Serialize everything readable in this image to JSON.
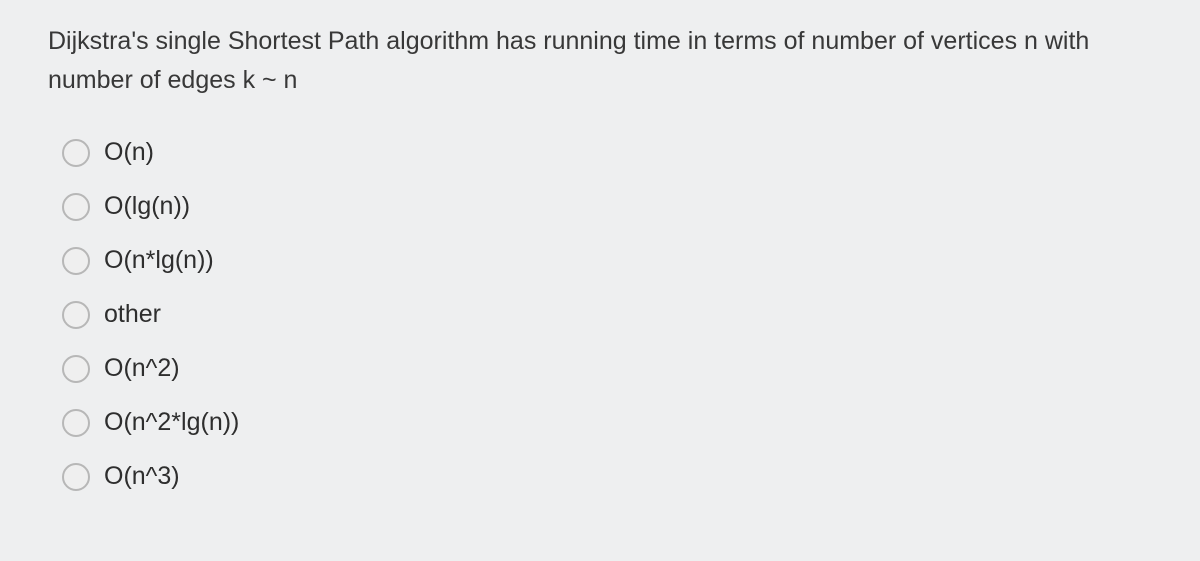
{
  "question": {
    "text": "Dijkstra's single Shortest Path algorithm has running time in terms of number of vertices n with number of edges k ~ n",
    "text_color": "#383838",
    "fontsize_pt": 18
  },
  "options": [
    {
      "label": "O(n)",
      "selected": false
    },
    {
      "label": "O(lg(n))",
      "selected": false
    },
    {
      "label": "O(n*lg(n))",
      "selected": false
    },
    {
      "label": "other",
      "selected": false
    },
    {
      "label": "O(n^2)",
      "selected": false
    },
    {
      "label": "O(n^2*lg(n))",
      "selected": false
    },
    {
      "label": "O(n^3)",
      "selected": false
    }
  ],
  "style": {
    "background_color": "#eeeff0",
    "radio_border_color": "#b7b7b7",
    "option_fontsize_pt": 18,
    "option_text_color": "#2e2e2e"
  }
}
